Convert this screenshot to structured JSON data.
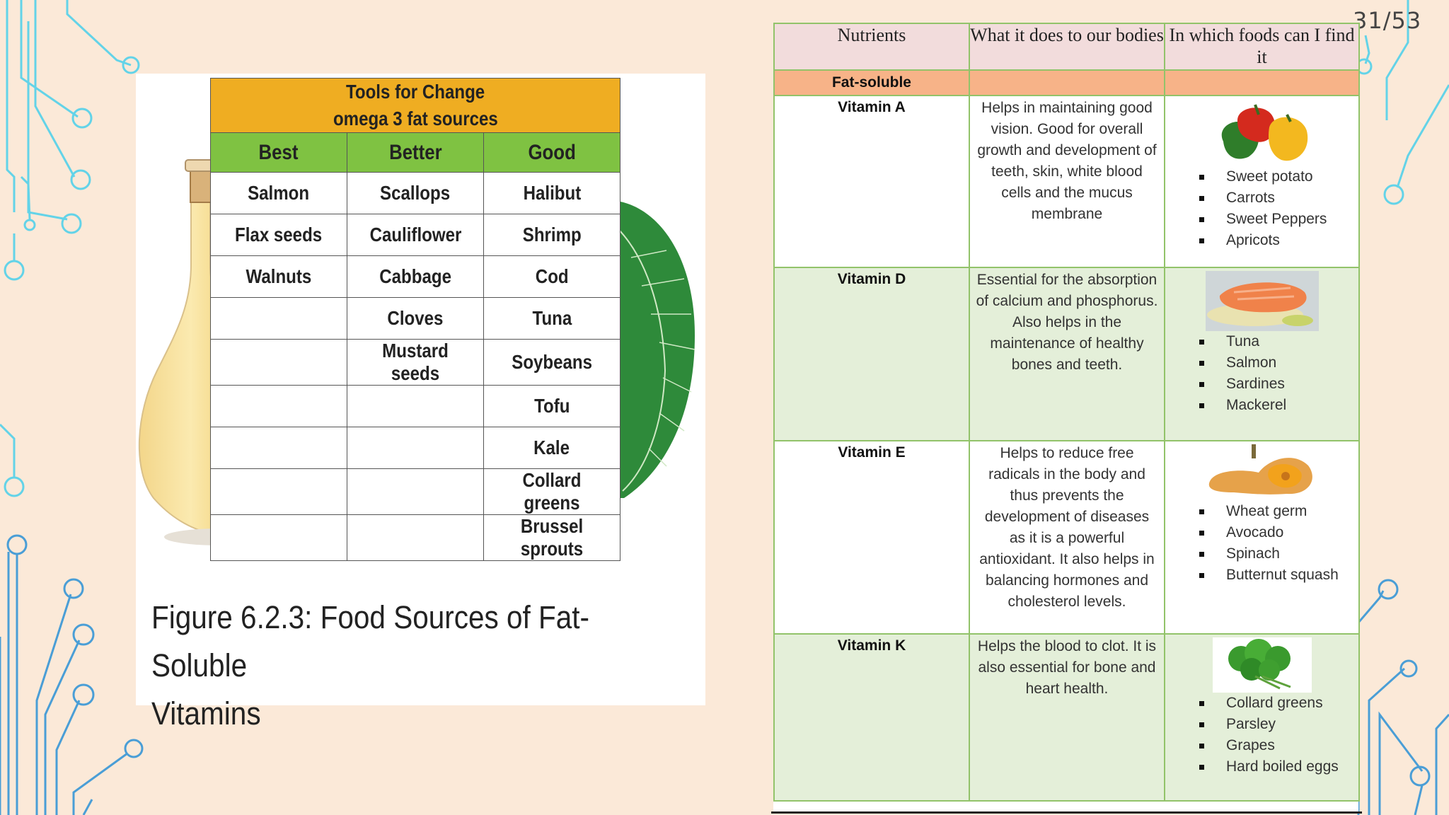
{
  "slide": {
    "page_number": "31/53"
  },
  "figure": {
    "table_title_line1": "Tools for Change",
    "table_title_line2": "omega 3 fat sources",
    "columns": [
      "Best",
      "Better",
      "Good"
    ],
    "rows": [
      [
        "Salmon",
        "Scallops",
        "Halibut"
      ],
      [
        "Flax seeds",
        "Cauliflower",
        "Shrimp"
      ],
      [
        "Walnuts",
        "Cabbage",
        "Cod"
      ],
      [
        "",
        "Cloves",
        "Tuna"
      ],
      [
        "",
        "Mustard seeds",
        "Soybeans"
      ],
      [
        "",
        "",
        "Tofu"
      ],
      [
        "",
        "",
        "Kale"
      ],
      [
        "",
        "",
        "Collard greens"
      ],
      [
        "",
        "",
        "Brussel sprouts"
      ]
    ],
    "caption_line1": "Figure 6.2.3: Food Sources of Fat-Soluble",
    "caption_line2": "Vitamins"
  },
  "nutrients": {
    "headers": [
      "Nutrients",
      "What it does to our bodies",
      "In which foods can I find it"
    ],
    "category": "Fat-soluble",
    "vitamins": [
      {
        "name": "Vitamin A",
        "description": "Helps in maintaining good vision. Good for overall growth and development of teeth, skin, white blood cells and the mucus membrane",
        "image_icon": "bell-peppers-image",
        "foods": [
          "Sweet potato",
          "Carrots",
          "Sweet Peppers",
          "Apricots"
        ]
      },
      {
        "name": "Vitamin D",
        "description": "Essential for the absorption of calcium and phosphorus. Also helps in the maintenance of healthy bones and teeth.",
        "image_icon": "salmon-fillet-image",
        "foods": [
          "Tuna",
          "Salmon",
          "Sardines",
          "Mackerel"
        ]
      },
      {
        "name": "Vitamin E",
        "description": "Helps to reduce free radicals in the body and thus prevents the development of diseases as it is a powerful antioxidant. It also helps in balancing hormones and cholesterol levels.",
        "image_icon": "butternut-squash-image",
        "foods": [
          "Wheat germ",
          "Avocado",
          "Spinach",
          "Butternut squash"
        ]
      },
      {
        "name": "Vitamin K",
        "description": "Helps the blood to clot. It is also essential for bone and heart health.",
        "image_icon": "parsley-image",
        "foods": [
          "Collard greens",
          "Parsley",
          "Grapes",
          "Hard boiled eggs"
        ]
      }
    ]
  },
  "colors": {
    "background": "#fbe9d8",
    "circuit_cyan": "#5fd0e6",
    "circuit_blue": "#4a9fd8",
    "omega_title": "#efad22",
    "omega_header": "#7fc242",
    "table_border": "#92c36a",
    "category_fill": "#f7b388",
    "header_fill": "#f2dcdc",
    "row_green": "#e4efd9"
  }
}
